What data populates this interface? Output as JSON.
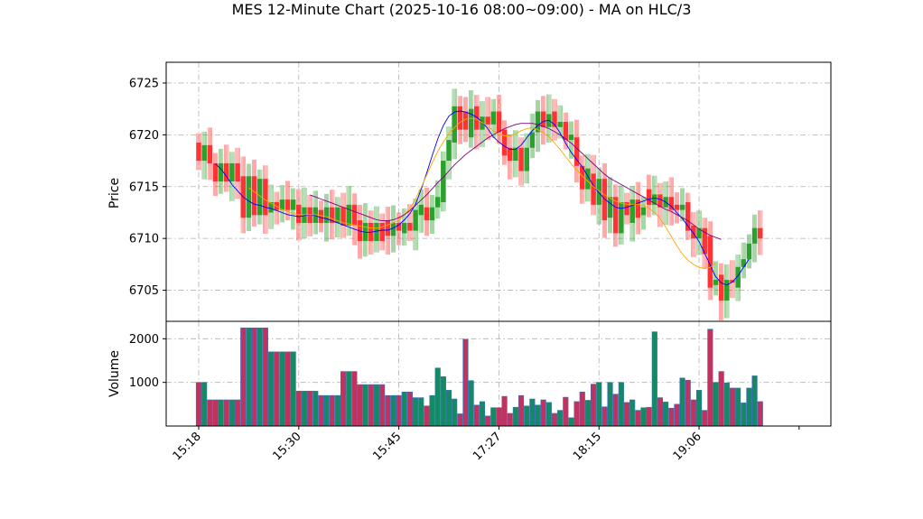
{
  "chart_data": {
    "type": "candlestick",
    "title": "MES 12-Minute Chart (2025-10-16 08:00~09:00) - MA on HLC/3",
    "price_panel": {
      "ylabel": "Price",
      "ylim": [
        6702,
        6727
      ],
      "yticks": [
        6705,
        6710,
        6715,
        6720,
        6725
      ],
      "grid": true
    },
    "volume_panel": {
      "ylabel": "Volume",
      "ylim": [
        0,
        2400
      ],
      "yticks": [
        1000,
        2000
      ],
      "grid": true
    },
    "x_ticks": [
      {
        "index": 0,
        "label": "15:18"
      },
      {
        "index": 18,
        "label": "15:30"
      },
      {
        "index": 36,
        "label": "15:45"
      },
      {
        "index": 54,
        "label": "17:27"
      },
      {
        "index": 72,
        "label": "18:15"
      },
      {
        "index": 90,
        "label": "19:06"
      },
      {
        "index": 108,
        "label": ""
      }
    ],
    "candles": [
      {
        "o": 6719.25,
        "c": 6717.5,
        "v": 1000
      },
      {
        "o": 6717.5,
        "c": 6719.0,
        "v": 1000
      },
      {
        "o": 6719.0,
        "c": 6717.25,
        "v": 600
      },
      {
        "o": 6717.25,
        "c": 6715.5,
        "v": 600
      },
      {
        "o": 6715.5,
        "c": 6717.25,
        "v": 600
      },
      {
        "o": 6717.25,
        "c": 6715.5,
        "v": 600
      },
      {
        "o": 6715.5,
        "c": 6717.25,
        "v": 600
      },
      {
        "o": 6717.25,
        "c": 6715.5,
        "v": 600
      },
      {
        "o": 6716.0,
        "c": 6712.0,
        "v": 2250
      },
      {
        "o": 6712.0,
        "c": 6716.0,
        "v": 2250
      },
      {
        "o": 6716.0,
        "c": 6712.25,
        "v": 2250
      },
      {
        "o": 6712.25,
        "c": 6715.75,
        "v": 2250
      },
      {
        "o": 6715.75,
        "c": 6712.25,
        "v": 2250
      },
      {
        "o": 6712.5,
        "c": 6713.5,
        "v": 1700
      },
      {
        "o": 6713.5,
        "c": 6712.75,
        "v": 1700
      },
      {
        "o": 6712.75,
        "c": 6713.75,
        "v": 1700
      },
      {
        "o": 6713.75,
        "c": 6712.75,
        "v": 1700
      },
      {
        "o": 6712.75,
        "c": 6713.75,
        "v": 1700
      },
      {
        "o": 6713.25,
        "c": 6711.5,
        "v": 800
      },
      {
        "o": 6711.5,
        "c": 6713.0,
        "v": 800
      },
      {
        "o": 6713.0,
        "c": 6711.5,
        "v": 800
      },
      {
        "o": 6711.5,
        "c": 6713.0,
        "v": 800
      },
      {
        "o": 6712.75,
        "c": 6711.5,
        "v": 700
      },
      {
        "o": 6711.5,
        "c": 6713.0,
        "v": 700
      },
      {
        "o": 6713.0,
        "c": 6711.5,
        "v": 700
      },
      {
        "o": 6711.5,
        "c": 6713.0,
        "v": 700
      },
      {
        "o": 6713.0,
        "c": 6711.25,
        "v": 1250
      },
      {
        "o": 6711.25,
        "c": 6713.25,
        "v": 1250
      },
      {
        "o": 6713.25,
        "c": 6711.25,
        "v": 1250
      },
      {
        "o": 6711.75,
        "c": 6709.75,
        "v": 950
      },
      {
        "o": 6709.75,
        "c": 6711.5,
        "v": 950
      },
      {
        "o": 6711.5,
        "c": 6709.75,
        "v": 950
      },
      {
        "o": 6709.75,
        "c": 6711.5,
        "v": 950
      },
      {
        "o": 6711.5,
        "c": 6709.75,
        "v": 950
      },
      {
        "o": 6711.75,
        "c": 6710.25,
        "v": 700
      },
      {
        "o": 6710.25,
        "c": 6711.5,
        "v": 700
      },
      {
        "o": 6711.5,
        "c": 6710.75,
        "v": 700
      },
      {
        "o": 6710.5,
        "c": 6711.5,
        "v": 780
      },
      {
        "o": 6711.5,
        "c": 6710.75,
        "v": 780
      },
      {
        "o": 6710.75,
        "c": 6712.75,
        "v": 650
      },
      {
        "o": 6712.25,
        "c": 6713.25,
        "v": 650
      },
      {
        "o": 6713.0,
        "c": 6711.75,
        "v": 460
      },
      {
        "o": 6711.75,
        "c": 6713.0,
        "v": 700
      },
      {
        "o": 6713.0,
        "c": 6714.0,
        "v": 1330
      },
      {
        "o": 6713.5,
        "c": 6717.5,
        "v": 1130
      },
      {
        "o": 6717.5,
        "c": 6719.5,
        "v": 820
      },
      {
        "o": 6719.25,
        "c": 6722.75,
        "v": 620
      },
      {
        "o": 6722.75,
        "c": 6720.5,
        "v": 280
      },
      {
        "o": 6722.25,
        "c": 6720.5,
        "v": 1990
      },
      {
        "o": 6719.75,
        "c": 6722.5,
        "v": 1040
      },
      {
        "o": 6722.75,
        "c": 6720.5,
        "v": 480
      },
      {
        "o": 6720.5,
        "c": 6721.75,
        "v": 560
      },
      {
        "o": 6721.75,
        "c": 6721.0,
        "v": 230
      },
      {
        "o": 6721.0,
        "c": 6722.25,
        "v": 420
      },
      {
        "o": 6722.25,
        "c": 6720.25,
        "v": 420
      },
      {
        "o": 6720.5,
        "c": 6718.0,
        "v": 680
      },
      {
        "o": 6718.75,
        "c": 6717.5,
        "v": 290
      },
      {
        "o": 6717.5,
        "c": 6718.75,
        "v": 430
      },
      {
        "o": 6718.75,
        "c": 6716.5,
        "v": 700
      },
      {
        "o": 6716.5,
        "c": 6718.75,
        "v": 460
      },
      {
        "o": 6718.75,
        "c": 6720.25,
        "v": 620
      },
      {
        "o": 6720.25,
        "c": 6722.25,
        "v": 480
      },
      {
        "o": 6722.25,
        "c": 6720.75,
        "v": 600
      },
      {
        "o": 6720.75,
        "c": 6722.0,
        "v": 540
      },
      {
        "o": 6722.25,
        "c": 6720.75,
        "v": 290
      },
      {
        "o": 6720.75,
        "c": 6721.25,
        "v": 360
      },
      {
        "o": 6721.25,
        "c": 6719.5,
        "v": 660
      },
      {
        "o": 6719.5,
        "c": 6720.0,
        "v": 190
      },
      {
        "o": 6719.75,
        "c": 6717.0,
        "v": 560
      },
      {
        "o": 6717.0,
        "c": 6714.75,
        "v": 780
      },
      {
        "o": 6714.75,
        "c": 6716.75,
        "v": 590
      },
      {
        "o": 6716.25,
        "c": 6713.25,
        "v": 960
      },
      {
        "o": 6713.25,
        "c": 6715.75,
        "v": 1000
      },
      {
        "o": 6715.75,
        "c": 6711.75,
        "v": 440
      },
      {
        "o": 6712.0,
        "c": 6714.0,
        "v": 1000
      },
      {
        "o": 6714.0,
        "c": 6710.5,
        "v": 730
      },
      {
        "o": 6710.5,
        "c": 6713.5,
        "v": 1000
      },
      {
        "o": 6713.5,
        "c": 6712.25,
        "v": 540
      },
      {
        "o": 6711.5,
        "c": 6713.75,
        "v": 600
      },
      {
        "o": 6713.75,
        "c": 6712.0,
        "v": 360
      },
      {
        "o": 6712.25,
        "c": 6713.0,
        "v": 420
      },
      {
        "o": 6714.75,
        "c": 6713.25,
        "v": 430
      },
      {
        "o": 6713.25,
        "c": 6714.25,
        "v": 2160
      },
      {
        "o": 6714.25,
        "c": 6713.0,
        "v": 650
      },
      {
        "o": 6713.0,
        "c": 6714.0,
        "v": 550
      },
      {
        "o": 6714.0,
        "c": 6712.75,
        "v": 410
      },
      {
        "o": 6713.25,
        "c": 6712.75,
        "v": 500
      },
      {
        "o": 6712.75,
        "c": 6713.25,
        "v": 1100
      },
      {
        "o": 6713.5,
        "c": 6710.75,
        "v": 1050
      },
      {
        "o": 6711.25,
        "c": 6710.0,
        "v": 600
      },
      {
        "o": 6710.0,
        "c": 6711.0,
        "v": 820
      },
      {
        "o": 6711.0,
        "c": 6708.5,
        "v": 360
      },
      {
        "o": 6710.25,
        "c": 6705.25,
        "v": 2220
      },
      {
        "o": 6705.5,
        "c": 6706.0,
        "v": 1000
      },
      {
        "o": 6706.5,
        "c": 6704.0,
        "v": 1250
      },
      {
        "o": 6704.0,
        "c": 6706.0,
        "v": 990
      },
      {
        "o": 6706.0,
        "c": 6705.75,
        "v": 870
      },
      {
        "o": 6705.25,
        "c": 6707.25,
        "v": 870
      },
      {
        "o": 6707.25,
        "c": 6708.0,
        "v": 530
      },
      {
        "o": 6708.0,
        "c": 6709.5,
        "v": 870
      },
      {
        "o": 6709.5,
        "c": 6711.0,
        "v": 1150
      },
      {
        "o": 6711.0,
        "c": 6710.0,
        "v": 560
      }
    ],
    "moving_averages": [
      {
        "color": "#0000ff",
        "start": 3,
        "values": [
          6717.2,
          6716.7,
          6716.0,
          6715.2,
          6714.6,
          6714.0,
          6713.6,
          6713.3,
          6713.2,
          6713.0,
          6712.9,
          6712.7,
          6712.5,
          6712.3,
          6712.2,
          6712.1,
          6712.2,
          6712.3,
          6712.2,
          6712.0,
          6711.9,
          6711.7,
          6711.5,
          6711.3,
          6711.1,
          6710.9,
          6710.7,
          6710.6,
          6710.6,
          6710.7,
          6710.8,
          6710.8,
          6711.0,
          6711.3,
          6711.8,
          6712.4,
          6713.3,
          6714.7,
          6716.3,
          6718.0,
          6719.6,
          6720.9,
          6721.8,
          6722.2,
          6722.3,
          6722.2,
          6722.0,
          6721.7,
          6721.2,
          6720.6,
          6719.8,
          6719.3,
          6718.9,
          6718.6,
          6718.6,
          6719.0,
          6719.7,
          6720.4,
          6720.9,
          6721.3,
          6721.4,
          6721.0,
          6720.2,
          6719.2,
          6718.3,
          6717.6,
          6716.9,
          6716.0,
          6715.1,
          6714.4,
          6713.8,
          6713.4,
          6713.0,
          6712.9,
          6713.0,
          6713.2,
          6713.4,
          6713.6,
          6713.8,
          6713.9,
          6713.8,
          6713.5,
          6713.1,
          6712.5,
          6711.9,
          6711.2,
          6710.5,
          6709.7,
          6708.6,
          6707.4,
          6706.3,
          6705.7,
          6705.5,
          6705.8,
          6706.4,
          6707.2,
          6708.0
        ]
      },
      {
        "color": "#ffa500",
        "start": 9,
        "values": [
          6714.9,
          6714.5,
          6714.1,
          6713.7,
          6713.4,
          6713.1,
          6712.8,
          6712.6,
          6712.4,
          6712.3,
          6712.3,
          6712.3,
          6712.3,
          6712.2,
          6712.1,
          6711.9,
          6711.7,
          6711.5,
          6711.4,
          6711.3,
          6711.2,
          6711.1,
          6711.0,
          6711.0,
          6711.1,
          6711.3,
          6711.5,
          6711.8,
          6712.3,
          6712.9,
          6713.8,
          6714.9,
          6716.1,
          6717.3,
          6718.4,
          6719.3,
          6720.1,
          6720.7,
          6721.2,
          6721.5,
          6721.6,
          6721.5,
          6721.2,
          6720.8,
          6720.4,
          6720.1,
          6719.9,
          6719.9,
          6720.1,
          6720.4,
          6720.6,
          6720.7,
          6720.5,
          6720.2,
          6719.8,
          6719.2,
          6718.6,
          6717.9,
          6717.2,
          6716.6,
          6716.0,
          6715.5,
          6715.0,
          6714.6,
          6714.2,
          6713.9,
          6713.6,
          6713.4,
          6713.3,
          6713.3,
          6713.3,
          6713.2,
          6712.9,
          6712.5,
          6711.9,
          6711.1,
          6710.2,
          6709.3,
          6708.5,
          6707.9,
          6707.5,
          6707.2,
          6707.1,
          6707.2,
          6707.6
        ]
      },
      {
        "color": "#800080",
        "start": 20,
        "values": [
          6714.2,
          6714.0,
          6713.8,
          6713.6,
          6713.4,
          6713.2,
          6713.0,
          6712.8,
          6712.6,
          6712.4,
          6712.2,
          6712.0,
          6711.8,
          6711.7,
          6711.7,
          6711.8,
          6712.0,
          6712.3,
          6712.7,
          6713.2,
          6713.7,
          6714.2,
          6714.8,
          6715.4,
          6715.9,
          6716.5,
          6717.1,
          6717.6,
          6718.1,
          6718.5,
          6718.9,
          6719.3,
          6719.7,
          6720.0,
          6720.3,
          6720.6,
          6720.8,
          6721.0,
          6721.1,
          6721.1,
          6721.1,
          6721.0,
          6720.8,
          6720.6,
          6720.3,
          6720.0,
          6719.6,
          6719.2,
          6718.7,
          6718.2,
          6717.7,
          6717.2,
          6716.7,
          6716.2,
          6715.8,
          6715.5,
          6715.2,
          6714.9,
          6714.6,
          6714.3,
          6714.0,
          6713.7,
          6713.4,
          6713.1,
          6712.8,
          6712.6,
          6712.3,
          6712.0,
          6711.7,
          6711.3,
          6710.9,
          6710.6,
          6710.3,
          6710.1,
          6709.9
        ]
      }
    ]
  }
}
